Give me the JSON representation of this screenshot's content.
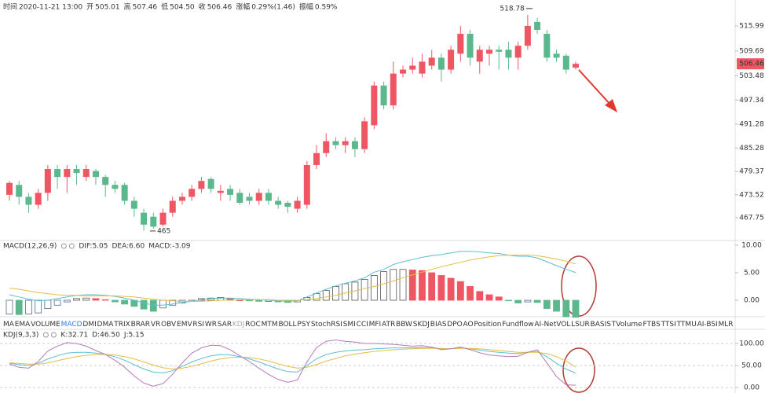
{
  "header": {
    "items": [
      {
        "label": "时间",
        "value": "2020-11-21 13:00"
      },
      {
        "label": "开",
        "value": "505.01"
      },
      {
        "label": "高",
        "value": "507.46"
      },
      {
        "label": "低",
        "value": "504.50"
      },
      {
        "label": "收",
        "value": "506.46"
      },
      {
        "label": "涨幅",
        "value": "0.29%(1.46)"
      },
      {
        "label": "振幅",
        "value": "0.59%"
      }
    ]
  },
  "tabs": {
    "items": [
      "MA",
      "EMA",
      "VOLUME",
      "MACD",
      "DMI",
      "DMA",
      "TRIX",
      "BRAR",
      "VR",
      "OBV",
      "EMV",
      "RSI",
      "WR",
      "SAR",
      "KDJ",
      "ROC",
      "MTM",
      "BOLL",
      "PSY",
      "StochRSI",
      "SMI",
      "CCI",
      "MFI",
      "ATR",
      "BBW",
      "SKDJ",
      "BIAS",
      "DPO",
      "AO",
      "Position",
      "Fundflow",
      "AI-NetVOL",
      "LSUR",
      "BASIS",
      "TVolume",
      "FTBS",
      "TTSI",
      "TTMU",
      "AI-BSI",
      "MLR"
    ],
    "active_index": 3,
    "muted_index": 14
  },
  "chart_data": [
    {
      "type": "candlestick",
      "up_color": "#ef5663",
      "down_color": "#5bb88c",
      "ylim": [
        462.21,
        522.51
      ],
      "yticks": [
        467.75,
        473.52,
        479.37,
        485.28,
        491.28,
        497.34,
        503.48,
        509.69,
        515.99
      ],
      "last_price": 506.46,
      "high_annotation": 518.78,
      "low_annotation": 465,
      "open": [
        473.5,
        476,
        473,
        471,
        474,
        480,
        478,
        480,
        478,
        479.5,
        478,
        476,
        476,
        472,
        469,
        468,
        466,
        469,
        472,
        473,
        475,
        477.5,
        474,
        475,
        474,
        473,
        472,
        474,
        472,
        471.5,
        470,
        471,
        481,
        484,
        487,
        486,
        487,
        485,
        491,
        501,
        496,
        504,
        505,
        504,
        506,
        508,
        505,
        509,
        514,
        507,
        509,
        510,
        510,
        508,
        511,
        517,
        514,
        509,
        508.5,
        505.5
      ],
      "high": [
        477,
        477,
        474,
        475,
        481,
        481,
        481,
        481,
        481,
        480,
        478.5,
        477,
        476.5,
        473,
        470,
        469,
        470,
        473,
        474,
        476,
        478,
        478,
        476,
        476,
        475,
        474,
        475,
        475,
        473,
        472,
        473,
        482,
        486,
        489,
        488,
        488,
        488,
        493,
        502,
        502,
        507,
        506,
        508,
        509,
        510,
        509,
        511,
        516,
        515,
        511,
        511,
        511,
        512,
        512,
        518.78,
        518,
        515,
        510,
        509,
        507
      ],
      "low": [
        472,
        471,
        469,
        470,
        472,
        475,
        474,
        476,
        477,
        476,
        473,
        474,
        471,
        468,
        464.5,
        465,
        465.5,
        468,
        471,
        472,
        474,
        474,
        472,
        472,
        471,
        471,
        471,
        471,
        470,
        469,
        469,
        470,
        480,
        483,
        485,
        484,
        483,
        484,
        490,
        495,
        495,
        503,
        504,
        503,
        505,
        502,
        504,
        507,
        506,
        504,
        506,
        505,
        505,
        505,
        510,
        514,
        507,
        507,
        504,
        505
      ],
      "close": [
        476.5,
        473,
        471,
        474,
        480,
        478,
        480,
        479,
        480,
        478,
        476,
        475,
        472,
        470,
        466,
        465.5,
        469,
        472,
        473,
        475,
        477,
        475,
        474.5,
        473.5,
        471.5,
        472,
        474,
        472,
        471,
        470.5,
        472,
        481,
        484,
        487,
        486,
        487,
        485,
        492,
        501,
        496,
        504,
        505,
        506,
        507,
        508,
        505,
        510,
        514,
        508,
        510,
        510,
        509.5,
        508,
        511,
        516,
        515,
        508,
        508,
        505,
        506.46
      ]
    },
    {
      "type": "macd",
      "title": "MACD(12,26,9)",
      "up_color": "#ef5663",
      "down_color": "#5bb88c",
      "ylim": [
        -2.57,
        10.71
      ],
      "yticks": [
        {
          "value": 0,
          "label": "0.00"
        },
        {
          "value": 5,
          "label": "5.00"
        },
        {
          "value": 10,
          "label": "10.00"
        }
      ],
      "values": [
        -2.5,
        -2.6,
        -2.5,
        -2.3,
        -1.5,
        -0.9,
        -0.3,
        0.3,
        0.4,
        0.3,
        0.1,
        -0.3,
        -0.7,
        -1.1,
        -1.6,
        -2.0,
        -1.4,
        -0.9,
        -0.5,
        -0.2,
        0.3,
        0.4,
        0.5,
        0.3,
        0.0,
        -0.1,
        -0.2,
        -0.2,
        -0.3,
        -0.4,
        -0.3,
        0.5,
        1.2,
        1.8,
        2.5,
        3.0,
        3.3,
        3.8,
        4.5,
        5.2,
        5.6,
        5.6,
        5.5,
        5.4,
        5.0,
        4.5,
        4.0,
        3.4,
        2.5,
        1.6,
        1.0,
        0.6,
        -0.1,
        -0.5,
        -0.3,
        -0.4,
        -1.5,
        -2.0,
        -3.0,
        -3.09
      ],
      "value_label": "MACD:-3.09",
      "value_label_color": "#5bb88c",
      "series": [
        {
          "label": "DIF:5.05",
          "color": "#5bbfd0",
          "values": [
            1.0,
            0.6,
            0.2,
            -0.1,
            0.0,
            0.3,
            0.6,
            0.9,
            1.0,
            1.0,
            0.9,
            0.7,
            0.4,
            0.0,
            -0.5,
            -0.9,
            -0.9,
            -0.7,
            -0.4,
            -0.2,
            0.1,
            0.3,
            0.4,
            0.4,
            0.3,
            0.2,
            0.1,
            0.0,
            -0.1,
            -0.2,
            -0.1,
            0.6,
            1.3,
            2.0,
            2.6,
            3.1,
            3.5,
            4.1,
            5.1,
            5.6,
            6.5,
            7.0,
            7.4,
            7.8,
            8.1,
            8.3,
            8.6,
            8.9,
            8.9,
            8.8,
            8.6,
            8.5,
            8.2,
            8.0,
            8.0,
            7.7,
            7.0,
            6.3,
            5.6,
            5.05
          ]
        },
        {
          "label": "DEA:6.60",
          "color": "#e6bd45",
          "values": [
            2.2,
            2.0,
            1.7,
            1.4,
            1.2,
            1.0,
            0.9,
            0.9,
            0.8,
            0.8,
            0.8,
            0.8,
            0.7,
            0.6,
            0.4,
            0.2,
            0.0,
            -0.1,
            -0.2,
            -0.2,
            -0.2,
            -0.1,
            0.0,
            0.0,
            0.1,
            0.1,
            0.1,
            0.1,
            0.0,
            0.0,
            0.0,
            0.1,
            0.3,
            0.6,
            0.9,
            1.3,
            1.7,
            2.1,
            2.5,
            3.0,
            3.5,
            4.1,
            4.6,
            5.1,
            5.6,
            6.1,
            6.5,
            6.9,
            7.3,
            7.6,
            7.9,
            8.1,
            8.2,
            8.2,
            8.2,
            8.1,
            7.8,
            7.5,
            7.1,
            6.6
          ]
        }
      ]
    },
    {
      "type": "line",
      "title": "KDJ(9,3,3)",
      "grid": true,
      "ylim": [
        -12.5,
        130.4
      ],
      "yticks": [
        {
          "value": 0,
          "label": "0.00"
        },
        {
          "value": 50,
          "label": "50.00"
        },
        {
          "value": 100,
          "label": "100.00"
        }
      ],
      "series": [
        {
          "label": "K:32.71",
          "color": "#5bbfd0",
          "values": [
            55,
            52,
            50,
            55,
            65,
            72,
            78,
            80,
            80,
            78,
            75,
            70,
            62,
            52,
            42,
            35,
            33,
            38,
            48,
            58,
            66,
            72,
            75,
            74,
            70,
            65,
            58,
            50,
            42,
            36,
            35,
            50,
            65,
            75,
            80,
            83,
            85,
            86,
            88,
            89,
            90,
            90,
            90,
            91,
            90,
            88,
            88,
            90,
            88,
            85,
            82,
            80,
            78,
            77,
            80,
            82,
            70,
            55,
            42,
            32.71
          ]
        },
        {
          "label": "D:46.50",
          "color": "#e6bd45",
          "values": [
            56,
            55,
            53,
            53,
            56,
            61,
            66,
            70,
            73,
            75,
            75,
            74,
            70,
            65,
            58,
            51,
            45,
            42,
            44,
            48,
            54,
            60,
            65,
            68,
            69,
            68,
            65,
            60,
            54,
            48,
            44,
            46,
            52,
            60,
            66,
            72,
            76,
            79,
            82,
            84,
            86,
            87,
            88,
            89,
            89,
            89,
            88,
            89,
            89,
            88,
            86,
            84,
            82,
            80,
            80,
            80,
            77,
            70,
            60,
            46.5
          ]
        },
        {
          "label": "J:5.15",
          "color": "#b97ab8",
          "values": [
            53,
            46,
            44,
            59,
            83,
            94,
            102,
            100,
            94,
            84,
            75,
            62,
            46,
            26,
            10,
            3,
            9,
            30,
            56,
            78,
            90,
            96,
            95,
            86,
            72,
            59,
            44,
            30,
            18,
            12,
            17,
            58,
            91,
            105,
            108,
            105,
            103,
            100,
            100,
            99,
            98,
            96,
            94,
            95,
            92,
            86,
            88,
            92,
            86,
            79,
            74,
            72,
            70,
            71,
            80,
            86,
            56,
            25,
            6,
            5.15
          ]
        }
      ]
    }
  ]
}
